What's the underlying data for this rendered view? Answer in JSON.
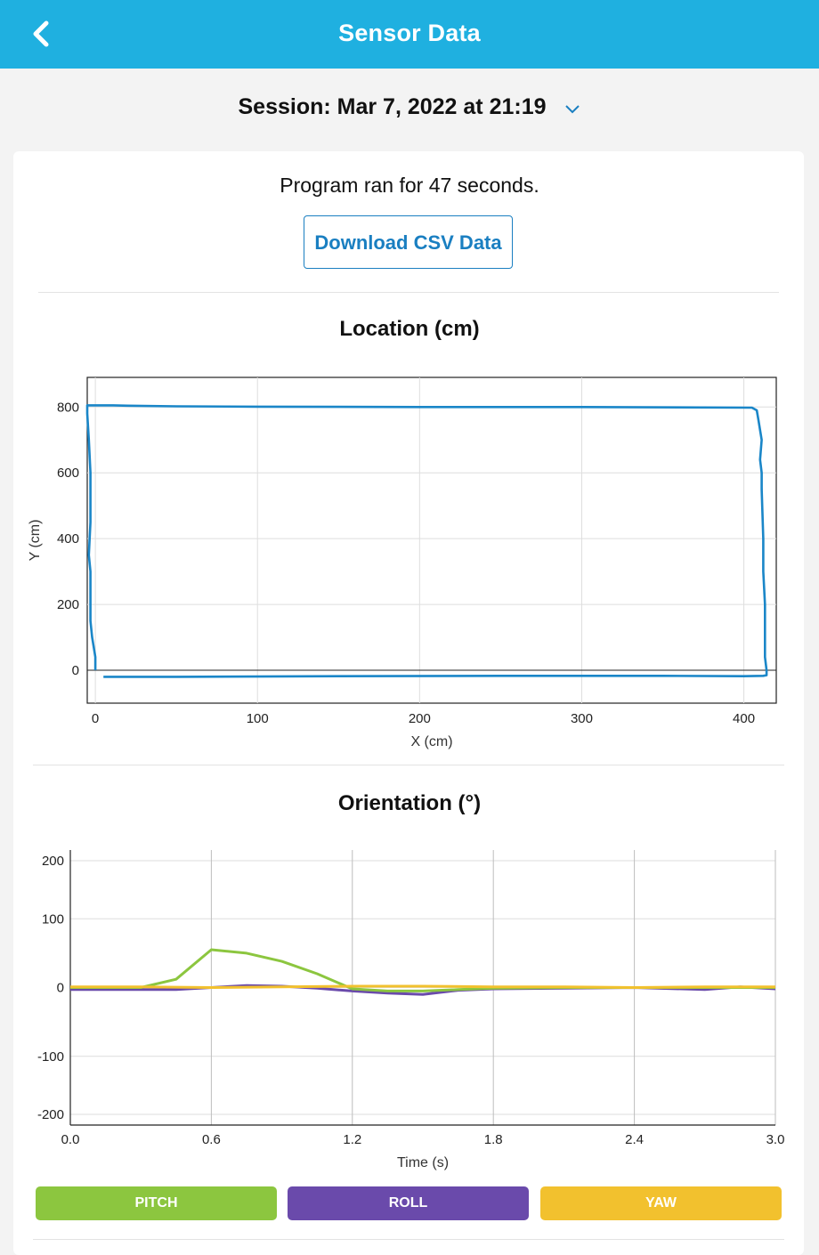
{
  "header": {
    "title": "Sensor Data",
    "back_icon": "chevron-left-icon"
  },
  "session": {
    "label": "Session: Mar 7, 2022 at 21:19",
    "dropdown_icon": "chevron-down-icon"
  },
  "summary": {
    "runtime_text": "Program ran for 47 seconds.",
    "download_label": "Download CSV Data"
  },
  "colors": {
    "accent": "#1fb0e0",
    "link": "#1a7fc1",
    "pitch": "#8cc63f",
    "roll": "#6a4aab",
    "yaw": "#f2c12e"
  },
  "chart_data": [
    {
      "type": "line",
      "title": "Location (cm)",
      "xlabel": "X (cm)",
      "ylabel": "Y (cm)",
      "xlim": [
        -5,
        420
      ],
      "ylim": [
        -100,
        890
      ],
      "xticks": [
        0,
        100,
        200,
        300,
        400
      ],
      "yticks": [
        0,
        200,
        400,
        600,
        800
      ],
      "grid": true,
      "series": [
        {
          "color": "#1a86c8",
          "x": [
            5,
            50,
            150,
            250,
            350,
            400,
            412,
            414,
            414,
            413,
            413,
            412,
            412,
            411,
            411,
            410,
            411,
            409,
            408,
            405,
            300,
            200,
            100,
            50,
            20,
            10,
            -5,
            -5,
            -4,
            -3,
            -3,
            -4,
            -3,
            -3,
            -3,
            -2,
            0,
            0
          ],
          "y": [
            -20,
            -20,
            -18,
            -17,
            -17,
            -18,
            -17,
            -15,
            0,
            40,
            200,
            300,
            400,
            550,
            600,
            640,
            700,
            760,
            790,
            798,
            800,
            800,
            801,
            802,
            804,
            805,
            805,
            780,
            700,
            600,
            450,
            350,
            300,
            200,
            150,
            100,
            40,
            0
          ]
        }
      ]
    },
    {
      "type": "line",
      "title": "Orientation (°)",
      "xlabel": "Time (s)",
      "ylabel": "",
      "xlim": [
        0,
        3.0
      ],
      "ylim": [
        -200,
        200
      ],
      "xticks": [
        "0.0",
        "0.6",
        "1.2",
        "1.8",
        "2.4",
        "3.0"
      ],
      "yticks": [
        200,
        100,
        0,
        -100,
        -200
      ],
      "grid": true,
      "series": [
        {
          "name": "PITCH",
          "color": "#8cc63f",
          "x": [
            0,
            0.15,
            0.3,
            0.45,
            0.6,
            0.75,
            0.9,
            1.05,
            1.2,
            1.35,
            1.5,
            1.65,
            1.8,
            2.1,
            2.4,
            2.7,
            3.0
          ],
          "y": [
            0,
            0,
            0,
            12,
            55,
            50,
            38,
            20,
            -2,
            -5,
            -5,
            -3,
            -1,
            0,
            0,
            0,
            0
          ]
        },
        {
          "name": "ROLL",
          "color": "#6a4aab",
          "x": [
            0,
            0.15,
            0.3,
            0.45,
            0.6,
            0.75,
            0.9,
            1.05,
            1.2,
            1.35,
            1.5,
            1.65,
            1.8,
            2.1,
            2.4,
            2.7,
            2.85,
            3.0
          ],
          "y": [
            -3,
            -3,
            -3,
            -3,
            0,
            3,
            2,
            -1,
            -5,
            -8,
            -10,
            -4,
            -2,
            -1,
            0,
            -3,
            1,
            -2
          ]
        },
        {
          "name": "YAW",
          "color": "#f2c12e",
          "x": [
            0,
            0.3,
            0.6,
            0.9,
            1.2,
            1.5,
            1.8,
            2.1,
            2.4,
            2.7,
            3.0
          ],
          "y": [
            1,
            1,
            0,
            1,
            2,
            2,
            1,
            1,
            0,
            1,
            1
          ]
        }
      ]
    }
  ],
  "legend": {
    "pitch_label": "PITCH",
    "roll_label": "ROLL",
    "yaw_label": "YAW"
  }
}
